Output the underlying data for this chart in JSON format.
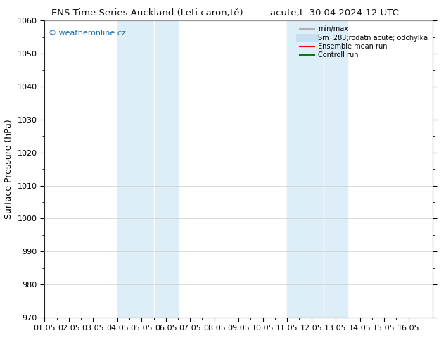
{
  "title_left": "ENS Time Series Auckland (Leti caron;tě)",
  "title_right": "acute;t. 30.04.2024 12 UTC",
  "ylabel": "Surface Pressure (hPa)",
  "ylim": [
    970,
    1060
  ],
  "yticks": [
    970,
    980,
    990,
    1000,
    1010,
    1020,
    1030,
    1040,
    1050,
    1060
  ],
  "xlim": [
    0,
    16
  ],
  "xtick_labels": [
    "01.05",
    "02.05",
    "03.05",
    "04.05",
    "05.05",
    "06.05",
    "07.05",
    "08.05",
    "09.05",
    "10.05",
    "11.05",
    "12.05",
    "13.05",
    "14.05",
    "15.05",
    "16.05"
  ],
  "xtick_positions": [
    0,
    1,
    2,
    3,
    4,
    5,
    6,
    7,
    8,
    9,
    10,
    11,
    12,
    13,
    14,
    15
  ],
  "shade_bands": [
    {
      "xmin": 3.0,
      "xmax": 4.5,
      "color": "#ddeef8"
    },
    {
      "xmin": 4.5,
      "xmax": 5.5,
      "color": "#ddeef8"
    },
    {
      "xmin": 10.0,
      "xmax": 11.5,
      "color": "#ddeef8"
    },
    {
      "xmin": 11.5,
      "xmax": 12.5,
      "color": "#ddeef8"
    }
  ],
  "shade_dividers": [
    4.5,
    11.5
  ],
  "watermark_text": "© weatheronline.cz",
  "watermark_color": "#1a6faf",
  "legend_entries": [
    {
      "label": "min/max",
      "color": "#b0b0b0",
      "lw": 1.5,
      "type": "line"
    },
    {
      "label": "Sm  283;rodatn acute; odchylka",
      "color": "#c8dff0",
      "lw": 8,
      "type": "line"
    },
    {
      "label": "Ensemble mean run",
      "color": "#ff0000",
      "lw": 1.5,
      "type": "line"
    },
    {
      "label": "Controll run",
      "color": "#008000",
      "lw": 1.5,
      "type": "line"
    }
  ],
  "bg_color": "#ffffff",
  "grid_color": "#cccccc",
  "title_fontsize": 9.5,
  "axis_fontsize": 9,
  "tick_fontsize": 8,
  "watermark_fontsize": 8
}
